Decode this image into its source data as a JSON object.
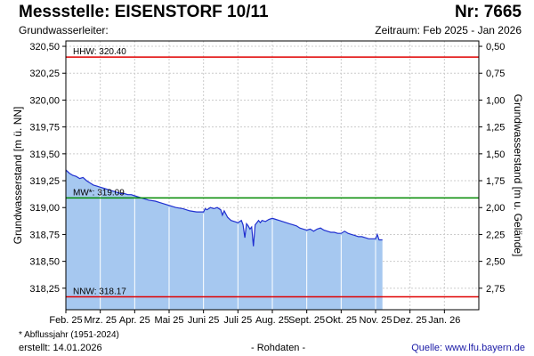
{
  "header": {
    "title": "Messstelle: EISENSTORF 10/11",
    "nr": "Nr: 7665",
    "aquifer": "Grundwasserleiter:",
    "period": "Zeitraum: Feb 2025 - Jan 2026"
  },
  "footer": {
    "footnote": "* Abflussjahr (1951-2024)",
    "created": "erstellt:  14.01.2026",
    "rawdata": "- Rohdaten -",
    "source": "Quelle: www.lfu.bayern.de"
  },
  "colors": {
    "fill": "#a6c8f0",
    "line": "#1f2fd0",
    "hhw": "#e00000",
    "nnw": "#e00000",
    "mw": "#008a00",
    "grid": "#cccccc"
  },
  "chart_data": {
    "type": "area",
    "ylabel": "Grundwasserstand [m ü. NN]",
    "y2label": "Grundwasserstand [m u. Gelände]",
    "ylim": [
      318.05,
      320.55
    ],
    "y_ticks": [
      "320,50",
      "320,25",
      "320,00",
      "319,75",
      "319,50",
      "319,25",
      "319,00",
      "318,75",
      "318,50",
      "318,25"
    ],
    "y_tick_values": [
      320.5,
      320.25,
      320.0,
      319.75,
      319.5,
      319.25,
      319.0,
      318.75,
      318.5,
      318.25
    ],
    "y2_ticks": [
      "0,50",
      "0,75",
      "1,00",
      "1,25",
      "1,50",
      "1,75",
      "2,00",
      "2,25",
      "2,50",
      "2,75"
    ],
    "x_ticks": [
      "Feb. 25",
      "Mrz. 25",
      "Apr. 25",
      "Mai 25",
      "Juni 25",
      "Juli 25",
      "Aug. 25",
      "Sept. 25",
      "Okt. 25",
      "Nov. 25",
      "Dez. 25",
      "Jan. 26"
    ],
    "x_range_months": [
      0,
      12
    ],
    "grid": true,
    "reference_lines": [
      {
        "label": "HHW: 320.40",
        "value": 320.4,
        "color_key": "hhw"
      },
      {
        "label": "MW*: 319.09",
        "value": 319.09,
        "color_key": "mw"
      },
      {
        "label": "NNW: 318.17",
        "value": 318.17,
        "color_key": "nnw"
      }
    ],
    "series": [
      {
        "x": [
          0.0,
          0.1,
          0.2,
          0.3,
          0.4,
          0.5,
          0.6,
          0.7,
          0.8,
          0.9,
          1.0,
          1.1,
          1.2,
          1.3,
          1.4,
          1.5,
          1.6,
          1.7,
          1.8,
          1.9,
          2.0,
          2.2,
          2.4,
          2.6,
          2.8,
          3.0,
          3.2,
          3.4,
          3.6,
          3.8,
          4.0,
          4.05,
          4.1,
          4.2,
          4.3,
          4.4,
          4.5,
          4.55,
          4.6,
          4.7,
          4.8,
          4.9,
          5.0,
          5.1,
          5.15,
          5.2,
          5.25,
          5.3,
          5.35,
          5.4,
          5.45,
          5.5,
          5.55,
          5.6,
          5.65,
          5.7,
          5.8,
          5.9,
          6.0,
          6.1,
          6.2,
          6.3,
          6.4,
          6.5,
          6.6,
          6.7,
          6.8,
          6.9,
          7.0,
          7.1,
          7.2,
          7.3,
          7.4,
          7.5,
          7.6,
          7.7,
          7.8,
          7.9,
          8.0,
          8.1,
          8.2,
          8.3,
          8.4,
          8.5,
          8.6,
          8.7,
          8.8,
          8.9,
          9.0,
          9.05,
          9.1,
          9.2
        ],
        "y": [
          319.35,
          319.32,
          319.3,
          319.29,
          319.27,
          319.28,
          319.25,
          319.23,
          319.21,
          319.2,
          319.19,
          319.18,
          319.17,
          319.16,
          319.15,
          319.14,
          319.13,
          319.13,
          319.12,
          319.12,
          319.11,
          319.09,
          319.07,
          319.06,
          319.04,
          319.02,
          319.0,
          318.99,
          318.97,
          318.96,
          318.96,
          318.99,
          318.98,
          319.0,
          318.99,
          319.0,
          318.98,
          318.93,
          318.97,
          318.91,
          318.88,
          318.87,
          318.86,
          318.88,
          318.84,
          318.72,
          318.85,
          318.83,
          318.8,
          318.82,
          318.64,
          318.84,
          318.86,
          318.88,
          318.86,
          318.88,
          318.87,
          318.89,
          318.9,
          318.89,
          318.88,
          318.87,
          318.86,
          318.85,
          318.84,
          318.83,
          318.81,
          318.8,
          318.79,
          318.8,
          318.78,
          318.8,
          318.81,
          318.79,
          318.78,
          318.77,
          318.77,
          318.76,
          318.76,
          318.78,
          318.76,
          318.75,
          318.74,
          318.73,
          318.73,
          318.72,
          318.71,
          318.71,
          318.71,
          318.75,
          318.7,
          318.7
        ]
      }
    ]
  }
}
